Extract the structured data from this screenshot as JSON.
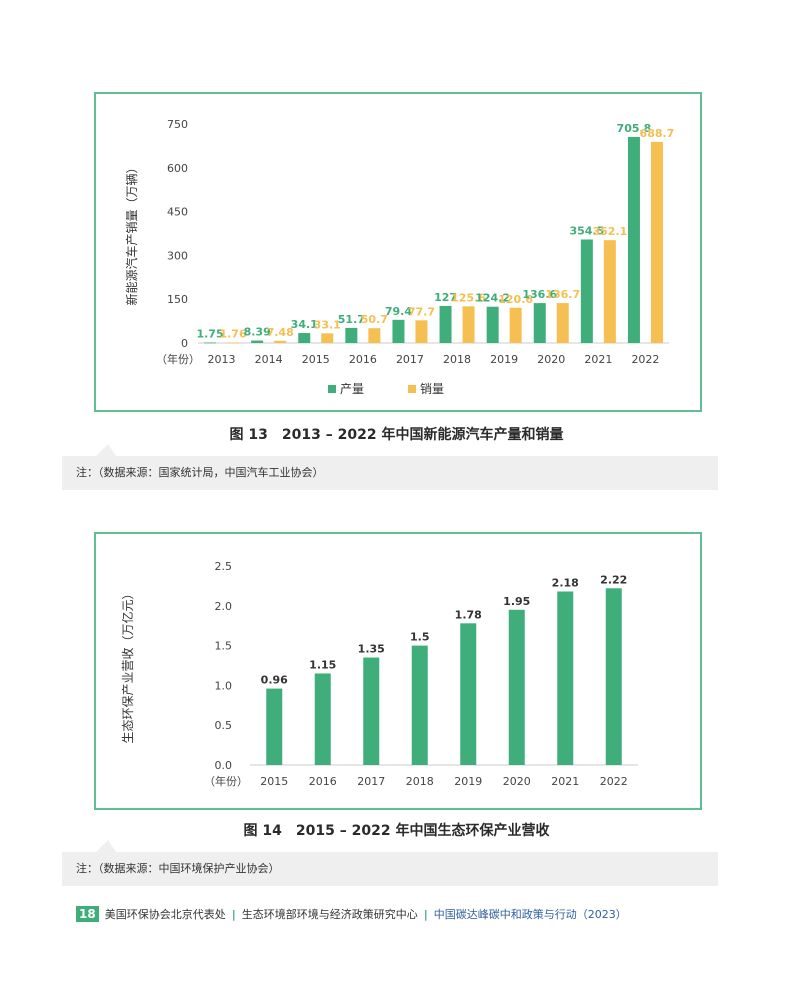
{
  "chart_data": [
    {
      "type": "bar",
      "title": "图 13　2013 – 2022 年中国新能源汽车产量和销量",
      "ylabel": "新能源汽车产销量（万辆）",
      "xlabel": "（年份）",
      "categories": [
        "2013",
        "2014",
        "2015",
        "2016",
        "2017",
        "2018",
        "2019",
        "2020",
        "2021",
        "2022"
      ],
      "series": [
        {
          "name": "产量",
          "color": "#3fae7a",
          "values": [
            1.75,
            8.39,
            34.1,
            51.7,
            79.4,
            127,
            124.2,
            136.6,
            354.5,
            705.8
          ],
          "labels": [
            "1.75",
            "8.39",
            "34.1",
            "51.7",
            "79.4",
            "127",
            "124.2",
            "136.6",
            "354.5",
            "705.8"
          ]
        },
        {
          "name": "销量",
          "color": "#f5bf52",
          "values": [
            1.76,
            7.48,
            33.1,
            50.7,
            77.7,
            125.6,
            120.6,
            136.7,
            352.1,
            688.7
          ],
          "labels": [
            "1.76",
            "7.48",
            "33.1",
            "50.7",
            "77.7",
            "125.6",
            "120.6",
            "136.7",
            "352.1",
            "688.7"
          ]
        }
      ],
      "yticks": [
        "0",
        "150",
        "300",
        "450",
        "600",
        "750"
      ],
      "ylim": [
        0,
        750
      ],
      "legend": "bottom"
    },
    {
      "type": "bar",
      "title": "图 14　2015 – 2022 年中国生态环保产业营收",
      "ylabel": "生态环保产业营收（万亿元）",
      "xlabel": "（年份）",
      "categories": [
        "2015",
        "2016",
        "2017",
        "2018",
        "2019",
        "2020",
        "2021",
        "2022"
      ],
      "series": [
        {
          "name": "营收",
          "color": "#3fae7a",
          "values": [
            0.96,
            1.15,
            1.35,
            1.5,
            1.78,
            1.95,
            2.18,
            2.22
          ],
          "labels": [
            "0.96",
            "1.15",
            "1.35",
            "1.5",
            "1.78",
            "1.95",
            "2.18",
            "2.22"
          ]
        }
      ],
      "yticks": [
        "0.0",
        "0.5",
        "1.0",
        "1.5",
        "2.0",
        "2.5"
      ],
      "ylim": [
        0,
        2.5
      ],
      "legend": "none"
    }
  ],
  "captions": {
    "fig13": "图 13　2013 – 2022 年中国新能源汽车产量和销量",
    "fig14": "图 14　2015 – 2022 年中国生态环保产业营收"
  },
  "notes": {
    "note1": "注：（数据来源：国家统计局，中国汽车工业协会）",
    "note2": "注：（数据来源：中国环境保护产业协会）"
  },
  "footer": {
    "page_number": "18",
    "org1": "美国环保协会北京代表处",
    "separator": "|",
    "org2": "生态环境部环境与经济政策研究中心",
    "publication": "中国碳达峰碳中和政策与行动（2023）"
  }
}
